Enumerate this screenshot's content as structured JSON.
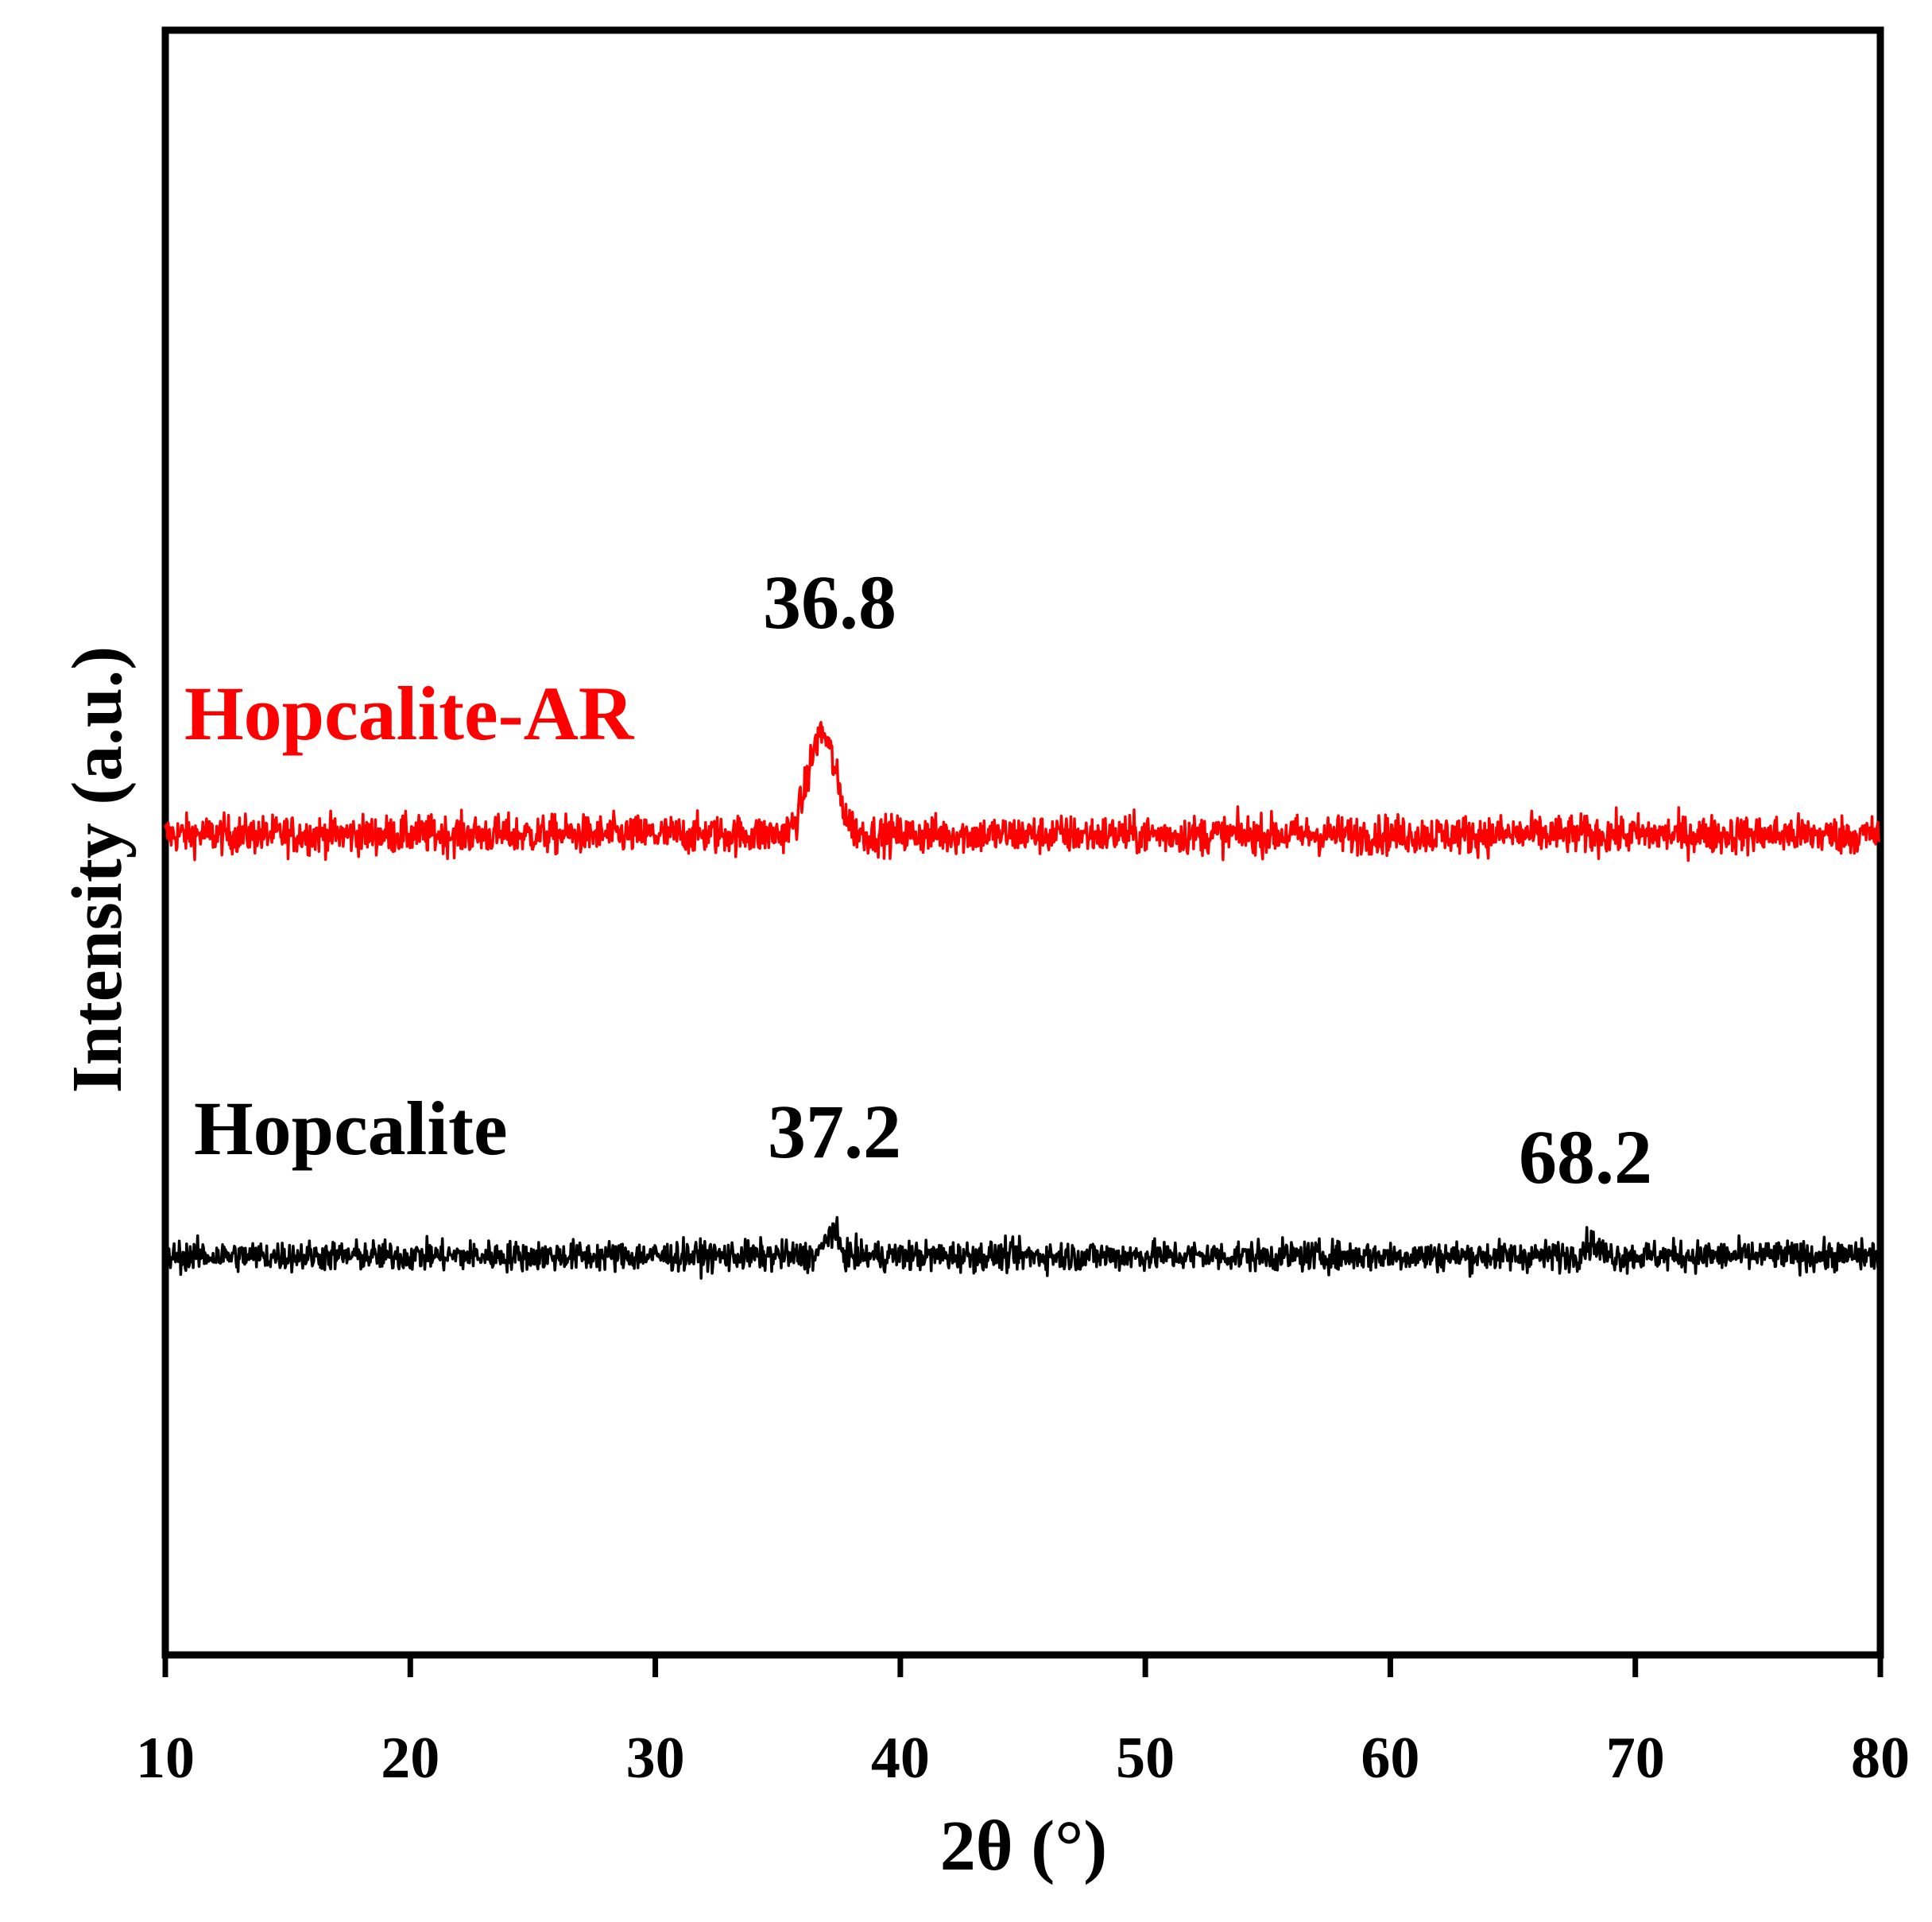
{
  "chart_data": {
    "type": "line",
    "xlabel": "2θ (°)",
    "ylabel": "Intensity (a.u.)",
    "xlim": [
      10,
      80
    ],
    "xticks": [
      10,
      20,
      30,
      40,
      50,
      60,
      70,
      80
    ],
    "yticks_shown": false,
    "grid": false,
    "legend": "none (series labeled inline)",
    "series": [
      {
        "name": "Hopcalite-AR",
        "color": "#ff0000",
        "baseline": 1.0,
        "noise": 0.045,
        "peaks": [
          {
            "x": 36.8,
            "height": 0.24,
            "width": 1.1
          }
        ]
      },
      {
        "name": "Hopcalite",
        "color": "#000000",
        "baseline": 0.0,
        "noise": 0.035,
        "peaks": [
          {
            "x": 37.2,
            "height": 0.06,
            "width": 0.5
          },
          {
            "x": 68.2,
            "height": 0.03,
            "width": 0.6
          }
        ]
      }
    ],
    "annotations": [
      {
        "text": "36.8",
        "x": 36.8,
        "series": "Hopcalite-AR"
      },
      {
        "text": "37.2",
        "x": 37.2,
        "series": "Hopcalite"
      },
      {
        "text": "68.2",
        "x": 68.2,
        "series": "Hopcalite"
      }
    ]
  }
}
